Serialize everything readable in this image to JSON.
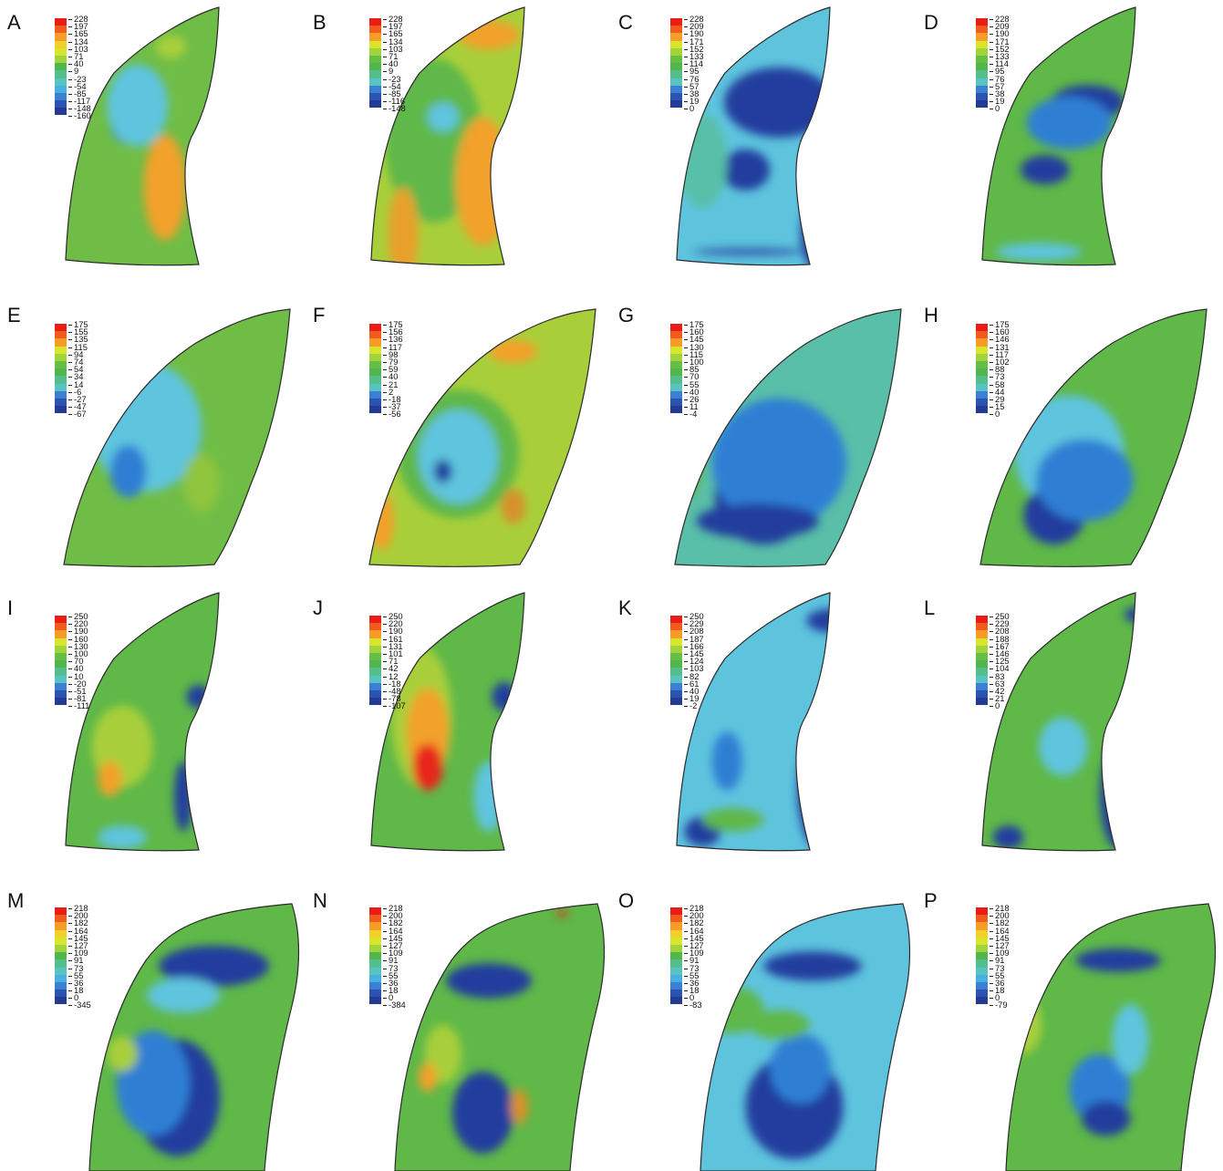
{
  "colors": {
    "red": "#e8261b",
    "orange": "#f2a12a",
    "yellow": "#e9dc28",
    "yellowgreen": "#a8cf3a",
    "green": "#5fb848",
    "teal": "#59bfa8",
    "lightblue": "#5ec4de",
    "blue": "#2e7fd4",
    "darkblue": "#243e9e",
    "outline": "#2a2a2a"
  },
  "legend_colors": [
    "#e81e16",
    "#f25a1e",
    "#f59d26",
    "#f3cf2b",
    "#d9e42d",
    "#a3d33a",
    "#66bf45",
    "#52b64c",
    "#54be8c",
    "#57c3c3",
    "#49aee2",
    "#3a7fd2",
    "#2d53b2",
    "#243b94"
  ],
  "panels": [
    {
      "label": "A",
      "ticks": [
        "228",
        "197",
        "165",
        "134",
        "103",
        "71",
        "40",
        "9",
        "-23",
        "-54",
        "-85",
        "-117",
        "-148",
        "-160"
      ],
      "shape": "tall",
      "base": "#6fbd46",
      "blobs": [
        [
          "#2e7fd4",
          0.42,
          0.42,
          0.06,
          0.07
        ],
        [
          "#5ec4de",
          0.45,
          0.36,
          0.1,
          0.14
        ],
        [
          "#e8261b",
          0.52,
          0.62,
          0.04,
          0.12
        ],
        [
          "#f2a12a",
          0.54,
          0.64,
          0.07,
          0.18
        ],
        [
          "#a8cf3a",
          0.56,
          0.16,
          0.05,
          0.04
        ]
      ]
    },
    {
      "label": "B",
      "ticks": [
        "228",
        "197",
        "165",
        "134",
        "103",
        "71",
        "40",
        "9",
        "-23",
        "-54",
        "-85",
        "-116",
        "-148"
      ],
      "shape": "tall",
      "base": "#a8cf3a",
      "blobs": [
        [
          "#5fb848",
          0.42,
          0.48,
          0.16,
          0.28
        ],
        [
          "#5ec4de",
          0.45,
          0.4,
          0.05,
          0.05
        ],
        [
          "#e8261b",
          0.58,
          0.65,
          0.05,
          0.16
        ],
        [
          "#f2a12a",
          0.58,
          0.62,
          0.09,
          0.22
        ],
        [
          "#e8a02a",
          0.32,
          0.8,
          0.05,
          0.16
        ],
        [
          "#f2a12a",
          0.6,
          0.12,
          0.1,
          0.05
        ]
      ]
    },
    {
      "label": "C",
      "ticks": [
        "228",
        "209",
        "190",
        "171",
        "152",
        "133",
        "114",
        "95",
        "76",
        "57",
        "38",
        "19",
        "0"
      ],
      "shape": "tall",
      "base": "#5ec4de",
      "blobs": [
        [
          "#243e9e",
          0.55,
          0.35,
          0.18,
          0.12
        ],
        [
          "#243e9e",
          0.44,
          0.58,
          0.08,
          0.07
        ],
        [
          "#243e9e",
          0.7,
          0.8,
          0.08,
          0.14
        ],
        [
          "#59bfa8",
          0.3,
          0.55,
          0.08,
          0.16
        ],
        [
          "#243e9e",
          0.45,
          0.86,
          0.18,
          0.01
        ]
      ]
    },
    {
      "label": "D",
      "ticks": [
        "228",
        "209",
        "190",
        "171",
        "152",
        "133",
        "114",
        "95",
        "76",
        "57",
        "38",
        "19",
        "0"
      ],
      "shape": "tall",
      "base": "#5fb848",
      "blobs": [
        [
          "#243e9e",
          0.56,
          0.35,
          0.12,
          0.06
        ],
        [
          "#2e7fd4",
          0.5,
          0.42,
          0.14,
          0.09
        ],
        [
          "#243e9e",
          0.42,
          0.58,
          0.08,
          0.05
        ],
        [
          "#243e9e",
          0.72,
          0.86,
          0.05,
          0.12
        ],
        [
          "#5ec4de",
          0.4,
          0.86,
          0.14,
          0.03
        ]
      ]
    },
    {
      "label": "E",
      "ticks": [
        "175",
        "155",
        "135",
        "115",
        "94",
        "74",
        "54",
        "34",
        "14",
        "-6",
        "-27",
        "-47",
        "-67"
      ],
      "shape": "wide",
      "base": "#6fbd46",
      "blobs": [
        [
          "#5ec4de",
          0.48,
          0.46,
          0.18,
          0.22
        ],
        [
          "#243e9e",
          0.42,
          0.6,
          0.04,
          0.06
        ],
        [
          "#2e7fd4",
          0.42,
          0.61,
          0.06,
          0.09
        ],
        [
          "#8fc53c",
          0.66,
          0.65,
          0.06,
          0.1
        ]
      ]
    },
    {
      "label": "F",
      "ticks": [
        "175",
        "156",
        "136",
        "117",
        "98",
        "79",
        "59",
        "40",
        "21",
        "2",
        "-18",
        "-37",
        "-56"
      ],
      "shape": "wide",
      "base": "#a8cf3a",
      "blobs": [
        [
          "#5fb848",
          0.5,
          0.55,
          0.2,
          0.22
        ],
        [
          "#5ec4de",
          0.5,
          0.56,
          0.13,
          0.16
        ],
        [
          "#243e9e",
          0.45,
          0.61,
          0.03,
          0.04
        ],
        [
          "#f2a12a",
          0.68,
          0.2,
          0.08,
          0.04
        ],
        [
          "#f2a12a",
          0.25,
          0.78,
          0.04,
          0.1
        ],
        [
          "#d6922a",
          0.68,
          0.73,
          0.04,
          0.06
        ]
      ]
    },
    {
      "label": "G",
      "ticks": [
        "175",
        "160",
        "145",
        "130",
        "115",
        "100",
        "85",
        "70",
        "55",
        "40",
        "26",
        "11",
        "-4"
      ],
      "shape": "wide",
      "base": "#59bfa8",
      "blobs": [
        [
          "#243e9e",
          0.5,
          0.7,
          0.16,
          0.16
        ],
        [
          "#2e7fd4",
          0.55,
          0.58,
          0.22,
          0.22
        ],
        [
          "#243e9e",
          0.48,
          0.78,
          0.2,
          0.06
        ],
        [
          "#5fb848",
          0.25,
          0.5,
          0.06,
          0.2
        ]
      ]
    },
    {
      "label": "H",
      "ticks": [
        "175",
        "160",
        "146",
        "131",
        "117",
        "102",
        "88",
        "73",
        "58",
        "44",
        "29",
        "15",
        "0"
      ],
      "shape": "wide",
      "base": "#5fb848",
      "blobs": [
        [
          "#5ec4de",
          0.5,
          0.55,
          0.18,
          0.2
        ],
        [
          "#243e9e",
          0.45,
          0.76,
          0.1,
          0.1
        ],
        [
          "#2e7fd4",
          0.55,
          0.64,
          0.16,
          0.14
        ],
        [
          "#a8cf3a",
          0.3,
          0.4,
          0.06,
          0.1
        ]
      ]
    },
    {
      "label": "I",
      "ticks": [
        "250",
        "220",
        "190",
        "160",
        "130",
        "100",
        "70",
        "40",
        "10",
        "-20",
        "-51",
        "-81",
        "-111"
      ],
      "shape": "tall",
      "base": "#5fb848",
      "blobs": [
        [
          "#a8cf3a",
          0.4,
          0.55,
          0.1,
          0.14
        ],
        [
          "#f2a12a",
          0.36,
          0.66,
          0.04,
          0.06
        ],
        [
          "#243e9e",
          0.65,
          0.38,
          0.04,
          0.04
        ],
        [
          "#243e9e",
          0.6,
          0.72,
          0.03,
          0.12
        ],
        [
          "#5ec4de",
          0.4,
          0.86,
          0.08,
          0.04
        ]
      ]
    },
    {
      "label": "J",
      "ticks": [
        "250",
        "220",
        "190",
        "161",
        "131",
        "101",
        "71",
        "42",
        "12",
        "-18",
        "-48",
        "-78",
        "-107"
      ],
      "shape": "tall",
      "base": "#5fb848",
      "blobs": [
        [
          "#a8cf3a",
          0.38,
          0.45,
          0.1,
          0.24
        ],
        [
          "#f2a12a",
          0.4,
          0.5,
          0.07,
          0.15
        ],
        [
          "#e8261b",
          0.4,
          0.62,
          0.05,
          0.08
        ],
        [
          "#243e9e",
          0.65,
          0.38,
          0.04,
          0.05
        ],
        [
          "#5ec4de",
          0.6,
          0.72,
          0.05,
          0.12
        ]
      ]
    },
    {
      "label": "K",
      "ticks": [
        "250",
        "229",
        "208",
        "187",
        "166",
        "145",
        "124",
        "103",
        "82",
        "61",
        "40",
        "19",
        "-2"
      ],
      "shape": "tall",
      "base": "#5ec4de",
      "blobs": [
        [
          "#243e9e",
          0.68,
          0.7,
          0.07,
          0.2
        ],
        [
          "#243e9e",
          0.72,
          0.12,
          0.08,
          0.04
        ],
        [
          "#2e7fd4",
          0.38,
          0.6,
          0.05,
          0.1
        ],
        [
          "#243e9e",
          0.3,
          0.84,
          0.06,
          0.05
        ],
        [
          "#5fb848",
          0.4,
          0.8,
          0.1,
          0.04
        ]
      ]
    },
    {
      "label": "L",
      "ticks": [
        "250",
        "229",
        "208",
        "188",
        "167",
        "146",
        "125",
        "104",
        "83",
        "63",
        "42",
        "21",
        "0"
      ],
      "shape": "tall",
      "base": "#5fb848",
      "blobs": [
        [
          "#243e9e",
          0.66,
          0.72,
          0.06,
          0.18
        ],
        [
          "#243e9e",
          0.74,
          0.1,
          0.06,
          0.03
        ],
        [
          "#5ec4de",
          0.48,
          0.55,
          0.08,
          0.1
        ],
        [
          "#243e9e",
          0.3,
          0.86,
          0.05,
          0.04
        ]
      ]
    },
    {
      "label": "M",
      "ticks": [
        "218",
        "200",
        "182",
        "164",
        "145",
        "127",
        "109",
        "91",
        "73",
        "55",
        "36",
        "18",
        "0",
        "-345"
      ],
      "shape": "arch",
      "base": "#5fb848",
      "blobs": [
        [
          "#243e9e",
          0.7,
          0.3,
          0.18,
          0.07
        ],
        [
          "#243e9e",
          0.58,
          0.75,
          0.14,
          0.2
        ],
        [
          "#2e7fd4",
          0.5,
          0.7,
          0.12,
          0.18
        ],
        [
          "#5ec4de",
          0.6,
          0.4,
          0.12,
          0.06
        ],
        [
          "#a8cf3a",
          0.4,
          0.6,
          0.05,
          0.06
        ]
      ]
    },
    {
      "label": "N",
      "ticks": [
        "218",
        "200",
        "182",
        "164",
        "145",
        "127",
        "109",
        "91",
        "73",
        "55",
        "36",
        "18",
        "0",
        "-384"
      ],
      "shape": "arch",
      "base": "#5fb848",
      "blobs": [
        [
          "#243e9e",
          0.6,
          0.35,
          0.14,
          0.06
        ],
        [
          "#243e9e",
          0.58,
          0.8,
          0.1,
          0.14
        ],
        [
          "#a8cf3a",
          0.45,
          0.6,
          0.06,
          0.1
        ],
        [
          "#f2a12a",
          0.4,
          0.68,
          0.03,
          0.05
        ],
        [
          "#d6922a",
          0.7,
          0.78,
          0.03,
          0.06
        ],
        [
          "#e8261b",
          0.84,
          0.12,
          0.02,
          0.01
        ]
      ]
    },
    {
      "label": "O",
      "ticks": [
        "218",
        "200",
        "182",
        "164",
        "145",
        "127",
        "109",
        "91",
        "73",
        "55",
        "36",
        "18",
        "0",
        "-83"
      ],
      "shape": "arch",
      "base": "#5ec4de",
      "blobs": [
        [
          "#243e9e",
          0.66,
          0.3,
          0.16,
          0.05
        ],
        [
          "#243e9e",
          0.6,
          0.78,
          0.16,
          0.18
        ],
        [
          "#2e7fd4",
          0.62,
          0.65,
          0.1,
          0.12
        ],
        [
          "#5fb848",
          0.4,
          0.45,
          0.1,
          0.08
        ],
        [
          "#5fb848",
          0.55,
          0.5,
          0.1,
          0.05
        ]
      ]
    },
    {
      "label": "P",
      "ticks": [
        "218",
        "200",
        "182",
        "164",
        "145",
        "127",
        "109",
        "91",
        "73",
        "55",
        "36",
        "18",
        "0",
        "-79"
      ],
      "shape": "arch",
      "base": "#5fb848",
      "blobs": [
        [
          "#243e9e",
          0.66,
          0.28,
          0.14,
          0.04
        ],
        [
          "#2e7fd4",
          0.6,
          0.72,
          0.1,
          0.12
        ],
        [
          "#5ec4de",
          0.7,
          0.55,
          0.06,
          0.12
        ],
        [
          "#a8cf3a",
          0.35,
          0.5,
          0.06,
          0.1
        ],
        [
          "#243e9e",
          0.62,
          0.82,
          0.08,
          0.06
        ]
      ]
    }
  ]
}
